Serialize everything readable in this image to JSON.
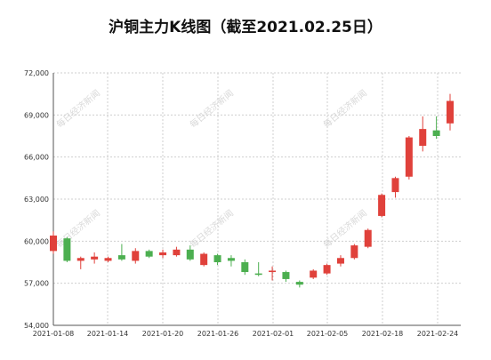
{
  "chart_data": {
    "type": "candlestick",
    "title": "沪铜主力K线图（截至2021.02.25日）",
    "ylim": [
      54000,
      72000
    ],
    "y_ticks": [
      "54,000",
      "57,000",
      "60,000",
      "63,000",
      "66,000",
      "69,000",
      "72,000"
    ],
    "x_ticks": [
      "2021-01-08",
      "2021-01-14",
      "2021-01-20",
      "2021-01-26",
      "2021-02-01",
      "2021-02-05",
      "2021-02-18",
      "2021-02-24"
    ],
    "grid": true,
    "watermark": "每日经济新闻",
    "colors": {
      "up": "#e0413b",
      "down": "#4caf50"
    },
    "candles": [
      {
        "open": 59300,
        "close": 60400,
        "high": 60700,
        "low": 59100
      },
      {
        "open": 60200,
        "close": 58600,
        "high": 60300,
        "low": 58500
      },
      {
        "open": 58600,
        "close": 58800,
        "high": 58900,
        "low": 58000
      },
      {
        "open": 58700,
        "close": 58900,
        "high": 59200,
        "low": 58400
      },
      {
        "open": 58600,
        "close": 58800,
        "high": 58900,
        "low": 58500
      },
      {
        "open": 59000,
        "close": 58700,
        "high": 59800,
        "low": 58600
      },
      {
        "open": 58600,
        "close": 59300,
        "high": 59500,
        "low": 58400
      },
      {
        "open": 59300,
        "close": 58900,
        "high": 59400,
        "low": 58800
      },
      {
        "open": 59000,
        "close": 59200,
        "high": 59400,
        "low": 58800
      },
      {
        "open": 59000,
        "close": 59400,
        "high": 59600,
        "low": 58900
      },
      {
        "open": 59400,
        "close": 58700,
        "high": 59700,
        "low": 58600
      },
      {
        "open": 58300,
        "close": 59100,
        "high": 59200,
        "low": 58200
      },
      {
        "open": 59000,
        "close": 58500,
        "high": 59100,
        "low": 58300
      },
      {
        "open": 58800,
        "close": 58600,
        "high": 59000,
        "low": 58200
      },
      {
        "open": 58500,
        "close": 57800,
        "high": 58700,
        "low": 57600
      },
      {
        "open": 57700,
        "close": 57600,
        "high": 58500,
        "low": 57500
      },
      {
        "open": 57800,
        "close": 57900,
        "high": 58200,
        "low": 57200
      },
      {
        "open": 57800,
        "close": 57300,
        "high": 57900,
        "low": 57100
      },
      {
        "open": 57100,
        "close": 56900,
        "high": 57200,
        "low": 56700
      },
      {
        "open": 57400,
        "close": 57900,
        "high": 58000,
        "low": 57300
      },
      {
        "open": 57700,
        "close": 58300,
        "high": 58400,
        "low": 57600
      },
      {
        "open": 58400,
        "close": 58800,
        "high": 59000,
        "low": 58200
      },
      {
        "open": 58800,
        "close": 59700,
        "high": 59800,
        "low": 58700
      },
      {
        "open": 59600,
        "close": 60800,
        "high": 60900,
        "low": 59500
      },
      {
        "open": 61800,
        "close": 63300,
        "high": 63400,
        "low": 61700
      },
      {
        "open": 63500,
        "close": 64500,
        "high": 64600,
        "low": 63100
      },
      {
        "open": 64600,
        "close": 67400,
        "high": 67500,
        "low": 64400
      },
      {
        "open": 66800,
        "close": 68000,
        "high": 68900,
        "low": 66400
      },
      {
        "open": 67900,
        "close": 67500,
        "high": 68900,
        "low": 67300
      },
      {
        "open": 68400,
        "close": 70000,
        "high": 70500,
        "low": 67900
      }
    ]
  }
}
